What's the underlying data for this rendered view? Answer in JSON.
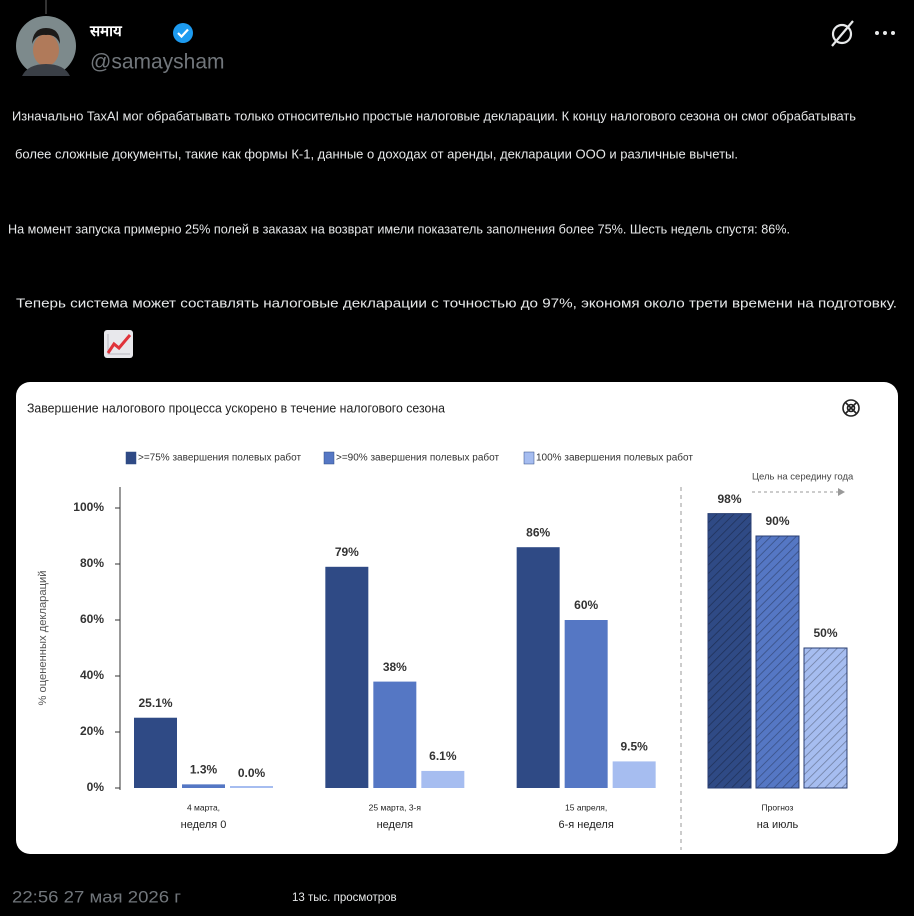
{
  "tweet": {
    "author_name": "समाय",
    "handle": "@samaysham",
    "paragraphs": [
      [
        "Изначально TaxAI мог обрабатывать только относительно простые налоговые декларации. К концу налогового сезона он смог обрабатывать",
        "более сложные документы, такие как формы К-1, данные о доходах от аренды, декларации ООО и различные вычеты."
      ],
      [
        "На момент запуска примерно 25% полей в заказах на возврат имели показатель заполнения более 75%. Шесть недель спустя: 86%."
      ],
      [
        "Теперь система может составлять налоговые декларации с точностью до 97%, экономя около трети времени на подготовку."
      ]
    ],
    "timestamp": "22:56 27 мая 2026 г",
    "views": "13 тыс. просмотров"
  },
  "chart_data": {
    "type": "bar",
    "title": "Завершение налогового процесса ускорено в течение налогового сезона",
    "y_label": "% оцененных деклараций",
    "annotation": "Цель на середину года",
    "categories": [
      [
        "4 марта,",
        "неделя 0"
      ],
      [
        "25 марта, 3-я",
        "неделя"
      ],
      [
        "15 апреля,",
        "6-я неделя"
      ],
      [
        "Прогноз",
        "на июль"
      ]
    ],
    "hatched": [
      false,
      false,
      false,
      true
    ],
    "series": [
      {
        "name": ">=75% завершения полевых работ",
        "color": "#2f4a85",
        "values": [
          25.1,
          79,
          86,
          98
        ],
        "value_labels": [
          "25.1%",
          "79%",
          "86%",
          "98%"
        ]
      },
      {
        "name": ">=90% завершения полевых работ",
        "color": "#5577c4",
        "values": [
          1.3,
          38,
          60,
          90
        ],
        "value_labels": [
          "1.3%",
          "38%",
          "60%",
          "90%"
        ]
      },
      {
        "name": "100% завершения полевых работ",
        "color": "#a6bdf0",
        "values": [
          0.0,
          6.1,
          9.5,
          50
        ],
        "value_labels": [
          "0.0%",
          "6.1%",
          "9.5%",
          "50%"
        ]
      }
    ],
    "ylim": [
      0,
      107.5
    ],
    "yticks": [
      {
        "value": 0,
        "label": "0%"
      },
      {
        "value": 20,
        "label": "20%"
      },
      {
        "value": 40,
        "label": "40%"
      },
      {
        "value": 60,
        "label": "60%"
      },
      {
        "value": 80,
        "label": "80%"
      },
      {
        "value": 100,
        "label": "100%"
      }
    ]
  }
}
